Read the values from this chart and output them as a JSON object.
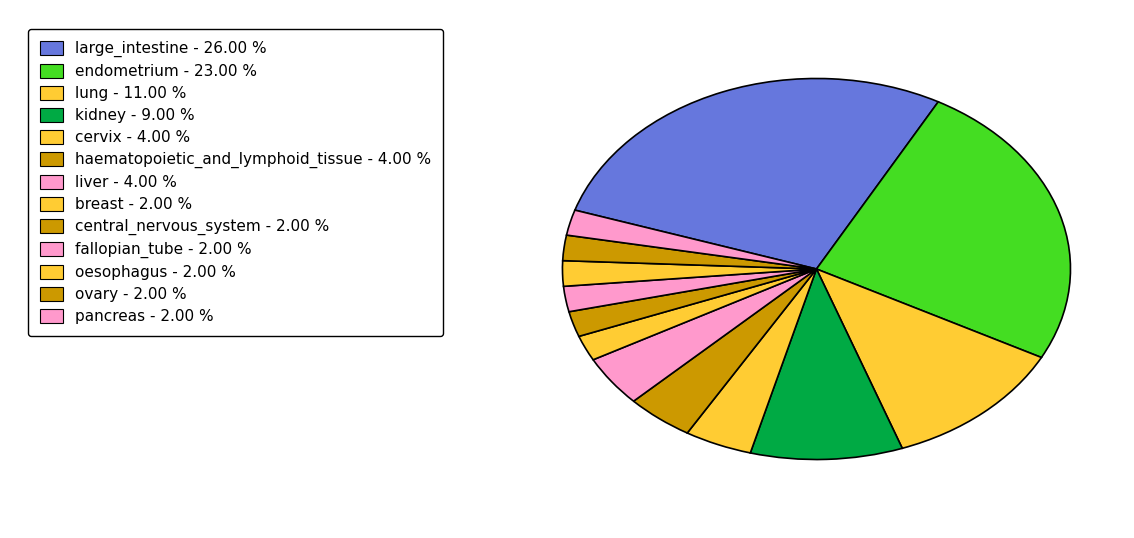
{
  "labels": [
    "large_intestine",
    "endometrium",
    "lung",
    "kidney",
    "cervix",
    "haematopoietic_and_lymphoid_tissue",
    "liver",
    "breast",
    "central_nervous_system",
    "fallopian_tube",
    "oesophagus",
    "ovary",
    "pancreas"
  ],
  "values": [
    26,
    23,
    11,
    9,
    4,
    4,
    4,
    2,
    2,
    2,
    2,
    2,
    2
  ],
  "colors": [
    "#6677dd",
    "#44dd22",
    "#ffcc33",
    "#00aa44",
    "#ffcc33",
    "#cc9900",
    "#ff99cc",
    "#ffcc33",
    "#cc9900",
    "#ff99cc",
    "#ffcc33",
    "#cc9900",
    "#ff99cc"
  ],
  "legend_labels": [
    "large_intestine - 26.00 %",
    "endometrium - 23.00 %",
    "lung - 11.00 %",
    "kidney - 9.00 %",
    "cervix - 4.00 %",
    "haematopoietic_and_lymphoid_tissue - 4.00 %",
    "liver - 4.00 %",
    "breast - 2.00 %",
    "central_nervous_system - 2.00 %",
    "fallopian_tube - 2.00 %",
    "oesophagus - 2.00 %",
    "ovary - 2.00 %",
    "pancreas - 2.00 %"
  ],
  "figsize": [
    11.34,
    5.38
  ],
  "dpi": 100,
  "background_color": "#ffffff",
  "legend_fontsize": 11
}
